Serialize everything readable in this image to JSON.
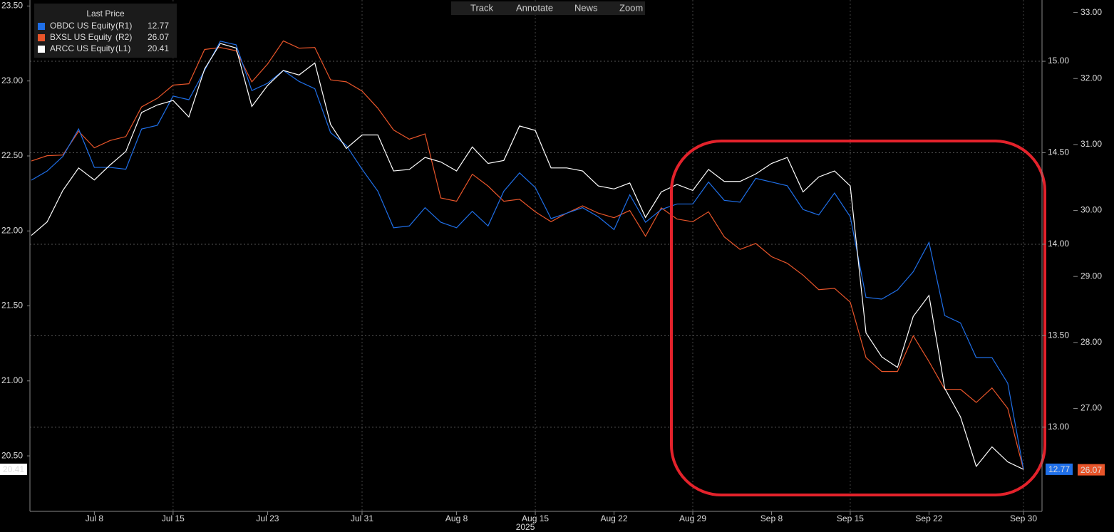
{
  "toolbar": [
    "Track",
    "Annotate",
    "News",
    "Zoom"
  ],
  "chart_data": {
    "type": "line",
    "legend_title": "Last Price",
    "categories": [
      null,
      null,
      null,
      null,
      "Jul 8",
      null,
      null,
      null,
      null,
      "Jul 15",
      null,
      null,
      null,
      null,
      null,
      "Jul 23",
      null,
      null,
      null,
      null,
      null,
      "Jul 31",
      null,
      null,
      null,
      null,
      null,
      "Aug 8",
      null,
      null,
      null,
      null,
      "Aug 15",
      null,
      null,
      null,
      null,
      "Aug 22",
      null,
      null,
      null,
      null,
      "Aug 29",
      null,
      null,
      null,
      null,
      "Sep 8",
      null,
      null,
      null,
      null,
      "Sep 15",
      null,
      null,
      null,
      null,
      "Sep 22",
      null,
      null,
      null,
      null,
      null,
      "Sep 30"
    ],
    "x_year_label": "2025",
    "series": [
      {
        "name": "OBDC US Equity",
        "axis_label": "(R1)",
        "axis": "y2",
        "color": "#1f6fe8",
        "values": [
          14.35,
          14.4,
          14.48,
          14.63,
          14.42,
          14.42,
          14.41,
          14.63,
          14.65,
          14.81,
          14.79,
          14.95,
          15.11,
          15.09,
          14.84,
          14.88,
          14.95,
          14.89,
          14.85,
          14.61,
          14.54,
          14.41,
          14.29,
          14.09,
          14.1,
          14.2,
          14.12,
          14.09,
          14.18,
          14.1,
          14.29,
          14.39,
          14.31,
          14.14,
          14.17,
          14.2,
          14.15,
          14.08,
          14.27,
          14.12,
          14.19,
          14.22,
          14.22,
          14.34,
          14.24,
          14.23,
          14.36,
          14.34,
          14.32,
          14.19,
          14.16,
          14.28,
          14.15,
          13.71,
          13.7,
          13.75,
          13.85,
          14.01,
          13.61,
          13.57,
          13.38,
          13.38,
          13.24,
          12.77
        ]
      },
      {
        "name": "BXSL US Equity",
        "axis_label": "(R2)",
        "axis": "y3",
        "color": "#e8552a",
        "values": [
          30.75,
          30.83,
          30.84,
          31.2,
          30.95,
          31.06,
          31.12,
          31.57,
          31.7,
          31.9,
          31.92,
          32.44,
          32.47,
          32.42,
          31.95,
          32.22,
          32.57,
          32.46,
          32.47,
          31.98,
          31.95,
          31.81,
          31.55,
          31.22,
          31.08,
          31.16,
          30.19,
          30.14,
          30.55,
          30.37,
          30.14,
          30.17,
          29.98,
          29.83,
          29.96,
          30.07,
          29.96,
          29.89,
          30.0,
          29.61,
          30.04,
          29.87,
          29.83,
          29.98,
          29.6,
          29.41,
          29.5,
          29.3,
          29.2,
          29.02,
          28.8,
          28.82,
          28.61,
          27.77,
          27.56,
          27.56,
          28.1,
          27.71,
          27.29,
          27.29,
          27.09,
          27.31,
          27.0,
          26.07
        ]
      },
      {
        "name": "ARCC US Equity",
        "axis_label": "(L1)",
        "axis": "y",
        "color": "#ffffff",
        "values": [
          21.97,
          22.06,
          22.27,
          22.42,
          22.34,
          22.44,
          22.53,
          22.79,
          22.84,
          22.87,
          22.76,
          23.08,
          23.25,
          23.22,
          22.83,
          22.97,
          23.07,
          23.04,
          23.12,
          22.71,
          22.55,
          22.64,
          22.64,
          22.4,
          22.41,
          22.49,
          22.46,
          22.4,
          22.56,
          22.45,
          22.47,
          22.7,
          22.67,
          22.42,
          22.42,
          22.4,
          22.3,
          22.28,
          22.32,
          22.09,
          22.26,
          22.31,
          22.27,
          22.41,
          22.33,
          22.33,
          22.38,
          22.45,
          22.49,
          22.26,
          22.36,
          22.4,
          22.3,
          21.32,
          21.16,
          21.09,
          21.43,
          21.57,
          20.95,
          20.76,
          20.43,
          20.56,
          20.46,
          20.41
        ]
      }
    ],
    "ylim": [
      20.13,
      23.54
    ],
    "yticks": [
      {
        "value": 23.5,
        "label": "23.50"
      },
      {
        "value": 23,
        "label": "23.00"
      },
      {
        "value": 22.5,
        "label": "22.50"
      },
      {
        "value": 22,
        "label": "22.00"
      },
      {
        "value": 21.5,
        "label": "21.50"
      },
      {
        "value": 21,
        "label": "21.00"
      },
      {
        "value": 20.5,
        "label": "20.50"
      }
    ],
    "y2lim": [
      12.54,
      15.335
    ],
    "y2ticks": [
      {
        "value": 15,
        "label": "15.00"
      },
      {
        "value": 14.5,
        "label": "14.50"
      },
      {
        "value": 14,
        "label": "14.00"
      },
      {
        "value": 13.5,
        "label": "13.50"
      },
      {
        "value": 13,
        "label": "13.00"
      }
    ],
    "y3lim": [
      25.44,
      33.19
    ],
    "y3ticks": [
      {
        "value": 33,
        "label": "33.00"
      },
      {
        "value": 32,
        "label": "32.00"
      },
      {
        "value": 31,
        "label": "31.00"
      },
      {
        "value": 30,
        "label": "30.00"
      },
      {
        "value": 29,
        "label": "29.00"
      },
      {
        "value": 28,
        "label": "28.00"
      },
      {
        "value": 27,
        "label": "27.00"
      }
    ],
    "grid": true
  }
}
